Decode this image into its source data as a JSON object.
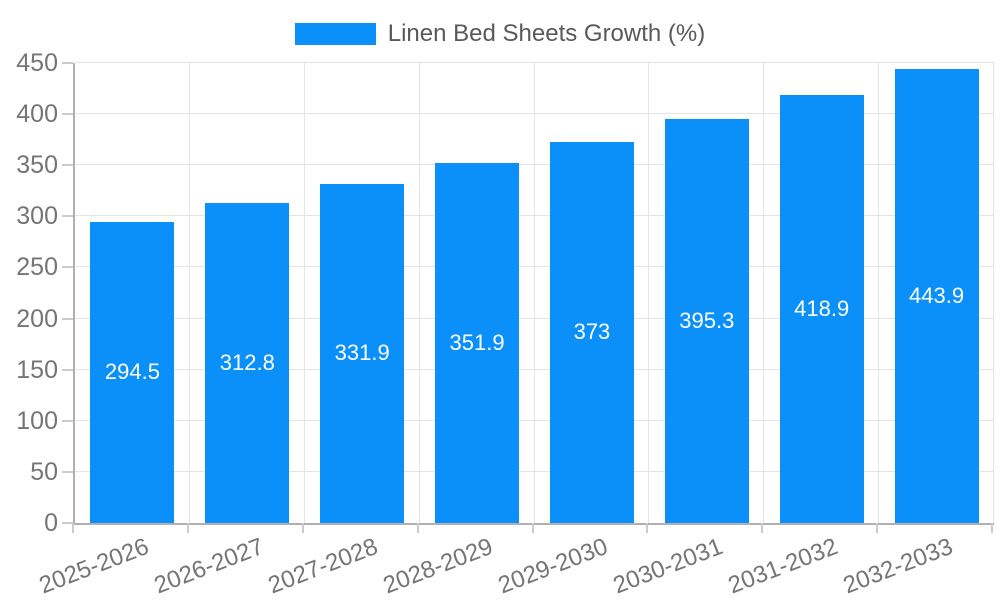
{
  "legend": {
    "label": "Linen Bed Sheets Growth (%)",
    "swatch_color": "#0a90f8"
  },
  "chart_data": {
    "type": "bar",
    "title": "Linen Bed Sheets Growth (%)",
    "series_name": "Linen Bed Sheets Growth (%)",
    "categories": [
      "2025-2026",
      "2026-2027",
      "2027-2028",
      "2028-2029",
      "2029-2030",
      "2030-2031",
      "2031-2032",
      "2032-2033"
    ],
    "values": [
      294.5,
      312.8,
      331.9,
      351.9,
      373,
      395.3,
      418.9,
      443.9
    ],
    "value_labels": [
      "294.5",
      "312.8",
      "331.9",
      "351.9",
      "373",
      "395.3",
      "418.9",
      "443.9"
    ],
    "xlabel": "",
    "ylabel": "",
    "ylim": [
      0,
      450
    ],
    "ytick_step": 50,
    "ytick_labels": [
      "0",
      "50",
      "100",
      "150",
      "200",
      "250",
      "300",
      "350",
      "400",
      "450"
    ],
    "grid": true,
    "legend_position": "top",
    "bar_color": "#0a90f8",
    "value_label_color": "#ffffff",
    "axis_line_color": "#b0b0b0",
    "gridline_color": "#e4e4e4",
    "tick_label_color": "#757575"
  }
}
